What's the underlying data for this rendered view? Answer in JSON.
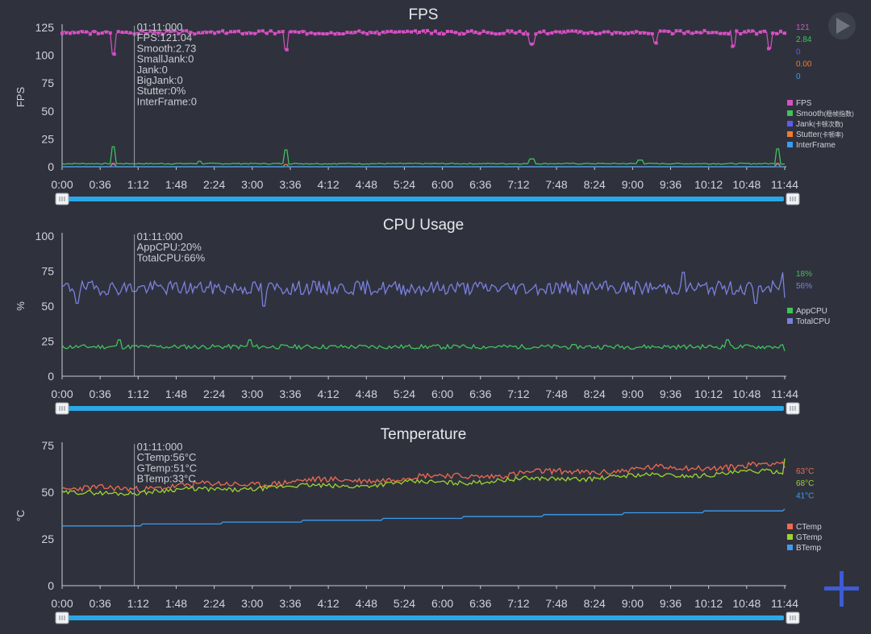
{
  "colors": {
    "background": "#2f323d",
    "slider": "#29a8e8",
    "cursor": "#9aa0ac",
    "add_button": "#3d5bd6"
  },
  "controls": {
    "play_icon": "play-icon",
    "add_icon": "plus-icon"
  },
  "x_ticks": [
    "0:00",
    "0:36",
    "1:12",
    "1:48",
    "2:24",
    "3:00",
    "3:36",
    "4:12",
    "4:48",
    "5:24",
    "6:00",
    "6:36",
    "7:12",
    "7:48",
    "8:24",
    "9:00",
    "9:36",
    "10:12",
    "10:48",
    "11:44"
  ],
  "cursor_time_fraction": 0.1,
  "chart_data": [
    {
      "type": "line",
      "title": "FPS",
      "ylabel": "FPS",
      "xlabel": "",
      "ylim": [
        0,
        125
      ],
      "yticks": [
        "125",
        "100",
        "75",
        "50",
        "25",
        "0"
      ],
      "x_range_seconds": [
        0,
        704
      ],
      "tooltip": [
        "01:11:000",
        "FPS:121.04",
        "Smooth:2.73",
        "SmallJank:0",
        "Jank:0",
        "BigJank:0",
        "Stutter:0%",
        "InterFrame:0"
      ],
      "current_values": [
        {
          "text": "121",
          "color": "#d84fc4"
        },
        {
          "text": "2.84",
          "color": "#3fc35a"
        },
        {
          "text": "0",
          "color": "#5b5cf0"
        },
        {
          "text": "0.00",
          "color": "#f07b2c"
        },
        {
          "text": "0",
          "color": "#3b9cf0"
        }
      ],
      "series": [
        {
          "name": "FPS",
          "label_note": "",
          "color": "#d84fc4",
          "marker": "square",
          "base": 120.5,
          "noise": 1.6,
          "seed": 3,
          "spikes": [
            [
              0.07,
              101
            ],
            [
              0.31,
              105
            ],
            [
              0.65,
              110
            ],
            [
              0.82,
              111
            ],
            [
              0.93,
              108
            ],
            [
              0.98,
              106
            ]
          ]
        },
        {
          "name": "Smooth",
          "label_note": "(稳帧指数)",
          "color": "#3fc35a",
          "marker": "line",
          "base": 2.8,
          "noise": 0.5,
          "seed": 7,
          "spikes": [
            [
              0.07,
              18
            ],
            [
              0.31,
              15
            ],
            [
              0.19,
              5
            ],
            [
              0.65,
              7
            ],
            [
              0.8,
              6
            ],
            [
              0.99,
              16
            ]
          ]
        },
        {
          "name": "Jank",
          "label_note": "(卡顿次数)",
          "color": "#5b5cf0",
          "marker": "line",
          "base": 0,
          "noise": 0,
          "seed": 1,
          "spikes": [
            [
              0.07,
              2
            ],
            [
              0.31,
              2
            ],
            [
              0.99,
              2
            ]
          ]
        },
        {
          "name": "Stutter",
          "label_note": "(卡顿率)",
          "color": "#f07b2c",
          "marker": "line",
          "base": 0,
          "noise": 0,
          "seed": 2,
          "spikes": [
            [
              0.07,
              3
            ],
            [
              0.31,
              2
            ],
            [
              0.99,
              3
            ]
          ]
        },
        {
          "name": "InterFrame",
          "label_note": "",
          "color": "#3b9cf0",
          "marker": "line",
          "base": 0,
          "noise": 0,
          "seed": 4,
          "spikes": []
        }
      ]
    },
    {
      "type": "line",
      "title": "CPU Usage",
      "ylabel": "%",
      "xlabel": "",
      "ylim": [
        0,
        100
      ],
      "yticks": [
        "100",
        "75",
        "50",
        "25",
        "0"
      ],
      "x_range_seconds": [
        0,
        704
      ],
      "tooltip": [
        "01:11:000",
        "AppCPU:20%",
        "TotalCPU:66%"
      ],
      "current_values": [
        {
          "text": "18%",
          "color": "#3fc35a"
        },
        {
          "text": "56%",
          "color": "#7b80de"
        }
      ],
      "series": [
        {
          "name": "AppCPU",
          "label_note": "",
          "color": "#3fc35a",
          "marker": "line",
          "base": 21,
          "noise": 1.6,
          "seed": 11,
          "spikes": [
            [
              0.08,
              26
            ],
            [
              0.26,
              26
            ],
            [
              0.92,
              26
            ]
          ],
          "end": 18
        },
        {
          "name": "TotalCPU",
          "label_note": "",
          "color": "#7b80de",
          "marker": "line",
          "base": 63,
          "noise": 5,
          "seed": 19,
          "spikes": [
            [
              0.02,
              52
            ],
            [
              0.28,
              50
            ],
            [
              0.86,
              74
            ],
            [
              0.96,
              52
            ],
            [
              1.0,
              74
            ]
          ],
          "end": 56
        }
      ]
    },
    {
      "type": "line",
      "title": "Temperature",
      "ylabel": "°C",
      "xlabel": "",
      "ylim": [
        0,
        75
      ],
      "yticks": [
        "75",
        "50",
        "25",
        "0"
      ],
      "x_range_seconds": [
        0,
        704
      ],
      "tooltip": [
        "01:11:000",
        "CTemp:56°C",
        "GTemp:51°C",
        "BTemp:33°C"
      ],
      "current_values": [
        {
          "text": "63°C",
          "color": "#f06a50"
        },
        {
          "text": "68°C",
          "color": "#9ed42e"
        },
        {
          "text": "41°C",
          "color": "#3b9cf0"
        }
      ],
      "series": [
        {
          "name": "CTemp",
          "label_note": "",
          "color": "#f06a50",
          "marker": "line",
          "start": 51,
          "end": 65,
          "noise": 1.6,
          "seed": 23,
          "spikes": [],
          "final": 63
        },
        {
          "name": "GTemp",
          "label_note": "",
          "color": "#9ed42e",
          "marker": "line",
          "start": 49,
          "end": 61,
          "noise": 1.2,
          "seed": 29,
          "spikes": [],
          "final": 68
        },
        {
          "name": "BTemp",
          "label_note": "",
          "color": "#3b9cf0",
          "marker": "step",
          "start": 32,
          "end": 41,
          "noise": 0,
          "seed": 31,
          "spikes": [],
          "final": 41
        }
      ]
    }
  ]
}
